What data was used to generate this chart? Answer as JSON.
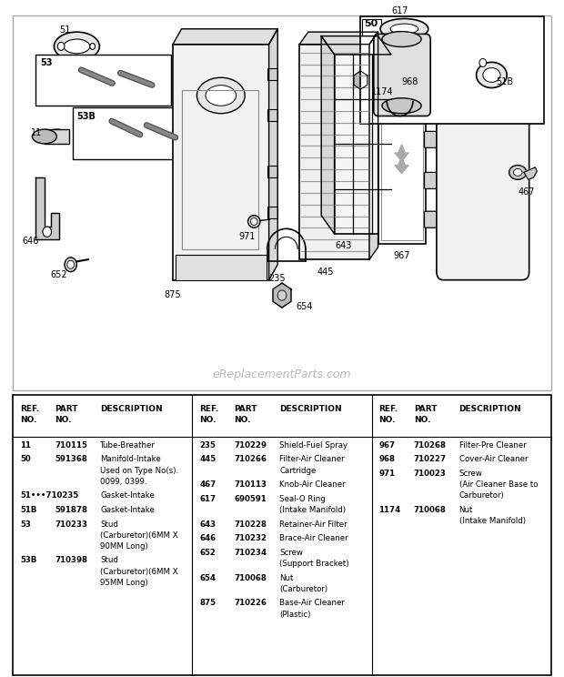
{
  "bg_color": "#ffffff",
  "watermark": "eReplacementParts.com",
  "col1_rows": [
    [
      "11",
      "710115",
      "Tube-Breather"
    ],
    [
      "50",
      "591368",
      "Manifold-Intake\nUsed on Type No(s).\n0099, 0399."
    ],
    [
      "51•••710235",
      "",
      "Gasket-Intake"
    ],
    [
      "51B",
      "591878",
      "Gasket-Intake"
    ],
    [
      "53",
      "710233",
      "Stud\n(Carburetor)(6MM X\n90MM Long)"
    ],
    [
      "53B",
      "710398",
      "Stud\n(Carburetor)(6MM X\n95MM Long)"
    ]
  ],
  "col2_rows": [
    [
      "235",
      "710229",
      "Shield-Fuel Spray"
    ],
    [
      "445",
      "710266",
      "Filter-Air Cleaner\nCartridge"
    ],
    [
      "467",
      "710113",
      "Knob-Air Cleaner"
    ],
    [
      "617",
      "690591",
      "Seal-O Ring\n(Intake Manifold)"
    ],
    [
      "643",
      "710228",
      "Retainer-Air Filter"
    ],
    [
      "646",
      "710232",
      "Brace-Air Cleaner"
    ],
    [
      "652",
      "710234",
      "Screw\n(Support Bracket)"
    ],
    [
      "654",
      "710068",
      "Nut\n(Carburetor)"
    ],
    [
      "875",
      "710226",
      "Base-Air Cleaner\n(Plastic)"
    ]
  ],
  "col3_rows": [
    [
      "967",
      "710268",
      "Filter-Pre Cleaner"
    ],
    [
      "968",
      "710227",
      "Cover-Air Cleaner"
    ],
    [
      "971",
      "710023",
      "Screw\n(Air Cleaner Base to\nCarburetor)"
    ],
    [
      "1174",
      "710068",
      "Nut\n(Intake Manifold)"
    ]
  ]
}
